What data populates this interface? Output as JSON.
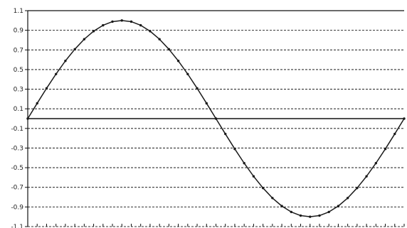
{
  "chart_data": {
    "type": "line",
    "title": "",
    "xlabel": "",
    "ylabel": "",
    "ylim": [
      -1.1,
      1.1
    ],
    "xlim": [
      0,
      1
    ],
    "ytick_labels": [
      "1.1",
      "0.9",
      "0.7",
      "0.5",
      "0.3",
      "0.1",
      "-0.1",
      "-0.3",
      "-0.5",
      "-0.7",
      "-0.9",
      "-1.1"
    ],
    "ytick_values": [
      1.1,
      0.9,
      0.7,
      0.5,
      0.3,
      0.1,
      -0.1,
      -0.3,
      -0.5,
      -0.7,
      -0.9,
      -1.1
    ],
    "grid": true,
    "grid_style": "dashed",
    "zero_line": true,
    "legend": "none",
    "x_tick_count": 40,
    "series": [
      {
        "x": [
          0,
          0.025,
          0.05,
          0.075,
          0.1,
          0.125,
          0.15,
          0.175,
          0.2,
          0.225,
          0.25,
          0.275,
          0.3,
          0.325,
          0.35,
          0.375,
          0.4,
          0.425,
          0.45,
          0.475,
          0.5,
          0.525,
          0.55,
          0.575,
          0.6,
          0.625,
          0.65,
          0.675,
          0.7,
          0.725,
          0.75,
          0.775,
          0.8,
          0.825,
          0.85,
          0.875,
          0.9,
          0.925,
          0.95,
          0.975,
          1.0
        ],
        "y": [
          0.0,
          0.156,
          0.309,
          0.454,
          0.588,
          0.707,
          0.809,
          0.891,
          0.951,
          0.988,
          1.0,
          0.988,
          0.951,
          0.891,
          0.809,
          0.707,
          0.588,
          0.454,
          0.309,
          0.156,
          0.0,
          -0.156,
          -0.309,
          -0.454,
          -0.588,
          -0.707,
          -0.809,
          -0.891,
          -0.951,
          -0.988,
          -1.0,
          -0.988,
          -0.951,
          -0.891,
          -0.809,
          -0.707,
          -0.588,
          -0.454,
          -0.309,
          -0.156,
          0.0
        ],
        "color": "#1a1a1a",
        "markers": true
      }
    ]
  }
}
